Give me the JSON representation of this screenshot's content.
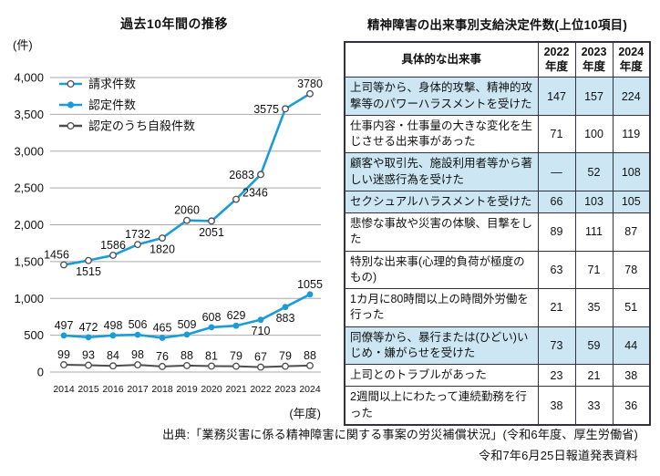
{
  "chart_data": {
    "type": "line",
    "title": "過去10年間の推移",
    "y_unit_label": "(件)",
    "x_unit_label": "(年度)",
    "x": [
      2014,
      2015,
      2016,
      2017,
      2018,
      2019,
      2020,
      2021,
      2022,
      2023,
      2024
    ],
    "ylim": [
      0,
      4000
    ],
    "ytick_step": 500,
    "grid": true,
    "legend_position": "top-left-inside",
    "colors": {
      "accent_blue": "#1b9cd8",
      "dark_line": "#4d4d4d",
      "grid": "#a9a9a9",
      "marker_stroke": "#4d4d4d",
      "label_text": "#111111"
    },
    "series": [
      {
        "name": "請求件数",
        "marker": "open",
        "color": "#1b9cd8",
        "values": [
          1456,
          1515,
          1586,
          1732,
          1820,
          2060,
          2051,
          2346,
          2683,
          3575,
          3780
        ],
        "label_pos": [
          "al",
          "b",
          "a",
          "a",
          "b",
          "a",
          "b",
          "ar",
          "l",
          "l",
          "a"
        ]
      },
      {
        "name": "認定件数",
        "marker": "filled",
        "color": "#1b9cd8",
        "values": [
          497,
          472,
          498,
          506,
          465,
          509,
          608,
          629,
          710,
          883,
          1055
        ],
        "label_pos": [
          "a",
          "a",
          "a",
          "a",
          "a",
          "a",
          "a",
          "a",
          "b",
          "b",
          "a"
        ]
      },
      {
        "name": "認定のうち自殺件数",
        "marker": "open",
        "color": "#4d4d4d",
        "values": [
          99,
          93,
          84,
          98,
          76,
          88,
          81,
          79,
          67,
          79,
          88
        ],
        "label_pos": [
          "a",
          "a",
          "a",
          "a",
          "a",
          "a",
          "a",
          "a",
          "a",
          "a",
          "a"
        ]
      }
    ]
  },
  "table": {
    "title": "精神障害の出来事別支給決定件数(上位10項目)",
    "columns": [
      "具体的な出来事",
      "2022年度",
      "2023年度",
      "2024年度"
    ],
    "highlight_color": "#cce7f3",
    "rows": [
      {
        "label": "上司等から、身体的攻撃、精神的攻撃等のパワーハラスメントを受けた",
        "values": [
          147,
          157,
          224
        ],
        "highlight": true
      },
      {
        "label": "仕事内容・仕事量の大きな変化を生じさせる出来事があった",
        "values": [
          71,
          100,
          119
        ],
        "highlight": false
      },
      {
        "label": "顧客や取引先、施設利用者等から著しい迷惑行為を受けた",
        "values": [
          "―",
          52,
          108
        ],
        "highlight": true
      },
      {
        "label": "セクシュアルハラスメントを受けた",
        "values": [
          66,
          103,
          105
        ],
        "highlight": true
      },
      {
        "label": "悲惨な事故や災害の体験、目撃をした",
        "values": [
          89,
          111,
          87
        ],
        "highlight": false
      },
      {
        "label": "特別な出来事(心理的負荷が極度のもの)",
        "values": [
          63,
          71,
          78
        ],
        "highlight": false
      },
      {
        "label": "1カ月に80時間以上の時間外労働を行った",
        "values": [
          21,
          35,
          51
        ],
        "highlight": false
      },
      {
        "label": "同僚等から、暴行または(ひどい)いじめ・嫌がらせを受けた",
        "values": [
          73,
          59,
          44
        ],
        "highlight": true
      },
      {
        "label": "上司とのトラブルがあった",
        "values": [
          23,
          21,
          38
        ],
        "highlight": false
      },
      {
        "label": "2週間以上にわたって連続勤務を行った",
        "values": [
          38,
          33,
          36
        ],
        "highlight": false
      }
    ]
  },
  "footer": {
    "line1": "出典:「業務災害に係る精神障害に関する事案の労災補償状況」(令和6年度、厚生労働省)",
    "line2": "令和7年6月25日報道発表資料"
  }
}
